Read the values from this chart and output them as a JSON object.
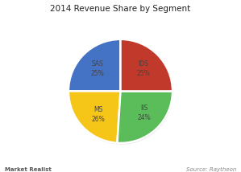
{
  "title": "2014 Revenue Share by Segment",
  "segments": [
    {
      "label": "IDS",
      "pct": "25%",
      "value": 25,
      "color": "#4472C4"
    },
    {
      "label": "IIS",
      "pct": "24%",
      "value": 24,
      "color": "#F5C518"
    },
    {
      "label": "MS",
      "pct": "26%",
      "value": 26,
      "color": "#5BBD5A"
    },
    {
      "label": "SAS",
      "pct": "25%",
      "value": 25,
      "color": "#C0392B"
    }
  ],
  "start_angle": 90,
  "background_color": "#ffffff",
  "title_fontsize": 7.5,
  "label_fontsize": 5.5,
  "footer_left": "Market Realist",
  "footer_right": "Source: Raytheon",
  "footer_fontsize": 5
}
